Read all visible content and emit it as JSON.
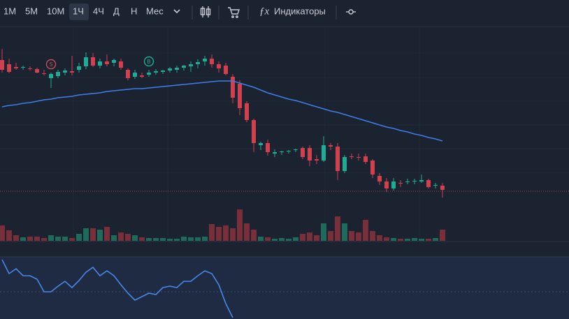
{
  "toolbar": {
    "timeframes": [
      "1М",
      "5М",
      "10М",
      "1Ч",
      "4Ч",
      "Д",
      "Н",
      "Мес"
    ],
    "active": "1Ч",
    "indicators": "Индикаторы"
  },
  "chart_data": {
    "type": "candlestick",
    "open": [
      214,
      208,
      204,
      203,
      202,
      201,
      195,
      188,
      191,
      196,
      198,
      200,
      205,
      218,
      206,
      212,
      210,
      212,
      200,
      190,
      192,
      193,
      196,
      197,
      199,
      200,
      203,
      205,
      208,
      212,
      216,
      208,
      206,
      190,
      180,
      152,
      128,
      92,
      95,
      80,
      82,
      83,
      85,
      88,
      88,
      72,
      70,
      92,
      90,
      55,
      76,
      75,
      76,
      70,
      48,
      40,
      30,
      38,
      39,
      40,
      40,
      42,
      34,
      34
    ],
    "high": [
      230,
      216,
      210,
      206,
      205,
      203,
      200,
      196,
      200,
      202,
      220,
      210,
      225,
      224,
      216,
      222,
      216,
      216,
      202,
      200,
      196,
      200,
      201,
      200,
      204,
      206,
      207,
      212,
      215,
      220,
      222,
      212,
      210,
      194,
      185,
      155,
      130,
      97,
      100,
      86,
      84,
      85,
      87,
      90,
      92,
      78,
      105,
      95,
      95,
      78,
      80,
      80,
      80,
      72,
      52,
      45,
      45,
      42,
      44,
      44,
      50,
      44,
      38,
      38
    ],
    "low": [
      196,
      195,
      200,
      200,
      199,
      195,
      192,
      174,
      188,
      192,
      192,
      196,
      201,
      204,
      202,
      205,
      205,
      200,
      185,
      187,
      188,
      190,
      193,
      194,
      196,
      196,
      199,
      197,
      202,
      206,
      203,
      196,
      192,
      152,
      135,
      125,
      82,
      85,
      77,
      75,
      78,
      80,
      82,
      72,
      62,
      65,
      68,
      85,
      42,
      52,
      72,
      70,
      65,
      45,
      35,
      25,
      27,
      32,
      36,
      36,
      38,
      30,
      30,
      17
    ],
    "close": [
      200,
      197,
      202,
      204,
      201,
      196,
      194,
      194,
      197,
      199,
      196,
      205,
      218,
      206,
      212,
      208,
      214,
      203,
      188,
      196,
      190,
      196,
      198,
      199,
      202,
      203,
      206,
      208,
      211,
      216,
      208,
      202,
      194,
      160,
      145,
      128,
      95,
      95,
      82,
      82,
      83,
      84,
      86,
      75,
      70,
      70,
      92,
      90,
      55,
      75,
      75,
      74,
      68,
      50,
      40,
      30,
      40,
      37,
      40,
      41,
      42,
      32,
      35,
      28
    ],
    "volume": [
      22,
      15,
      8,
      5,
      6,
      6,
      4,
      8,
      6,
      6,
      4,
      10,
      18,
      18,
      16,
      20,
      8,
      12,
      10,
      8,
      5,
      4,
      4,
      4,
      3,
      3,
      6,
      5,
      5,
      6,
      24,
      20,
      22,
      18,
      45,
      25,
      16,
      6,
      5,
      3,
      4,
      3,
      5,
      10,
      12,
      8,
      25,
      14,
      35,
      25,
      14,
      12,
      30,
      14,
      8,
      5,
      4,
      3,
      3,
      4,
      3,
      3,
      4,
      16
    ],
    "ma": [
      147,
      149,
      150,
      152,
      153,
      155,
      157,
      158,
      160,
      161,
      162,
      164,
      165,
      166,
      167,
      169,
      170,
      171,
      172,
      173,
      173,
      174,
      175,
      176,
      177,
      178,
      179,
      180,
      181,
      182,
      183,
      184,
      184,
      184,
      181,
      178,
      175,
      171,
      167,
      164,
      161,
      158,
      156,
      153,
      150,
      147,
      144,
      141,
      139,
      136,
      133,
      130,
      127,
      124,
      121,
      118,
      116,
      113,
      111,
      108,
      106,
      103,
      101,
      98
    ],
    "oscillator": [
      96,
      76,
      83,
      73,
      73,
      68,
      50,
      50,
      58,
      65,
      56,
      66,
      78,
      85,
      73,
      80,
      73,
      60,
      48,
      38,
      43,
      48,
      46,
      56,
      58,
      56,
      65,
      65,
      73,
      80,
      76,
      60,
      33,
      13,
      null,
      null,
      null,
      null,
      null,
      null,
      null,
      null,
      null,
      null,
      null,
      null,
      null,
      null,
      null,
      null,
      null,
      null,
      null,
      null,
      null,
      null,
      null,
      null,
      null,
      null,
      null,
      null,
      null,
      null
    ],
    "ylim": [
      10,
      260
    ],
    "volume_lim": [
      0,
      50
    ],
    "oscillator_lim": [
      0,
      100
    ],
    "oscillator_level": 50,
    "grid_levels": [
      224,
      189,
      155,
      121,
      87,
      53
    ],
    "price_line": 26,
    "up_color": "#22ab94",
    "down_color": "#d0404f",
    "volume_up_color": "#1d6b5a",
    "volume_down_color": "#7a2e3a",
    "ma_color": "#3d7ee8",
    "oscillator_color": "#4a86e8",
    "markers": [
      {
        "label": "S",
        "index": 7,
        "color": "#c0505e"
      },
      {
        "label": "B",
        "index": 21,
        "color": "#22ab94"
      }
    ]
  }
}
